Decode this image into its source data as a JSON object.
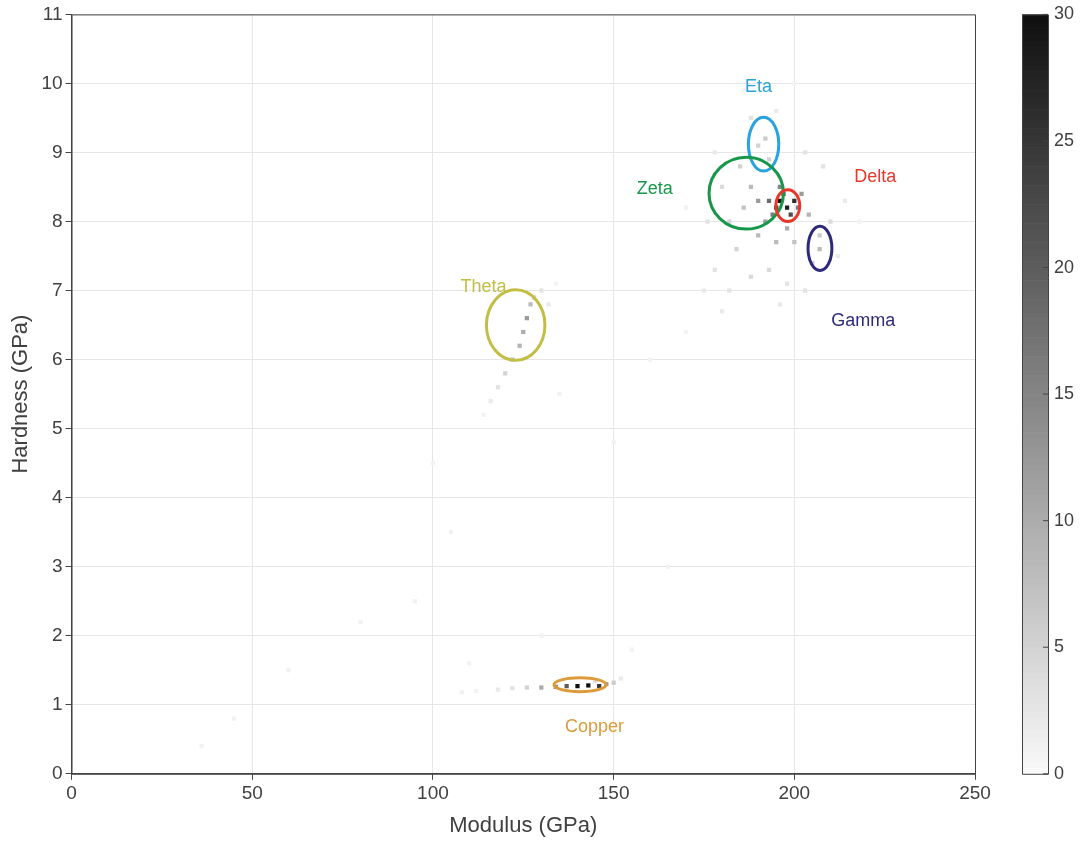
{
  "chart_data": {
    "type": "scatter",
    "xlabel": "Modulus (GPa)",
    "ylabel": "Hardness (GPa)",
    "xlim": [
      0,
      250
    ],
    "xticks": [
      0,
      50,
      100,
      150,
      200,
      250
    ],
    "ylim": [
      0,
      11
    ],
    "yticks": [
      0,
      1,
      2,
      3,
      4,
      5,
      6,
      7,
      8,
      9,
      10,
      11
    ],
    "grid": true,
    "legend": false,
    "marker": "square",
    "clim": [
      0,
      30
    ],
    "cticks": [
      0,
      5,
      10,
      15,
      20,
      25,
      30
    ],
    "series": [
      {
        "x": [
          196,
          198,
          200,
          195,
          197,
          199,
          193,
          201,
          194,
          196,
          202,
          190,
          192,
          198,
          204,
          188,
          186,
          190,
          195,
          200,
          207,
          207,
          205,
          184,
          182,
          180,
          185,
          190,
          192,
          193,
          188,
          195,
          178,
          176,
          178,
          182,
          188,
          193,
          198,
          203,
          210,
          212,
          214,
          208,
          203,
          186,
          175,
          180,
          196,
          170,
          200,
          218,
          126,
          125,
          127,
          124,
          122,
          128,
          120,
          130,
          132,
          118,
          116,
          114,
          134,
          140,
          143,
          146,
          137,
          134,
          130,
          148,
          150,
          126,
          122,
          118,
          112,
          145,
          152,
          108,
          36,
          45,
          60,
          80,
          95,
          105,
          100,
          110,
          130,
          155,
          165,
          150,
          135,
          160,
          170
        ],
        "values": [
          8.3,
          8.2,
          8.3,
          8.2,
          8.4,
          8.1,
          8.3,
          8.2,
          8.1,
          8.5,
          8.4,
          8.3,
          8.0,
          7.9,
          8.1,
          8.5,
          8.2,
          7.8,
          7.7,
          7.7,
          7.6,
          7.8,
          7.4,
          7.6,
          8.0,
          8.5,
          8.8,
          9.1,
          9.2,
          8.9,
          9.5,
          9.6,
          9.0,
          8.0,
          7.3,
          7.0,
          7.2,
          7.3,
          7.1,
          7.0,
          8.0,
          7.5,
          8.3,
          8.8,
          9.0,
          9.9,
          7.0,
          6.7,
          6.8,
          8.2,
          10.0,
          8.0,
          6.6,
          6.4,
          6.8,
          6.2,
          6.0,
          6.9,
          5.8,
          7.0,
          6.8,
          5.6,
          5.4,
          5.2,
          7.1,
          1.27,
          1.28,
          1.27,
          1.27,
          1.26,
          1.25,
          1.3,
          1.32,
          1.25,
          1.24,
          1.22,
          1.2,
          1.35,
          1.38,
          1.18,
          0.4,
          0.8,
          1.5,
          2.2,
          2.5,
          3.5,
          4.5,
          1.6,
          2.0,
          1.8,
          3.0,
          4.8,
          5.5,
          6.0,
          6.4
        ],
        "cvalues": [
          30,
          28,
          26,
          24,
          22,
          22,
          18,
          16,
          16,
          15,
          12,
          12,
          12,
          10,
          9,
          8,
          7,
          8,
          8,
          7,
          8,
          6,
          5,
          5,
          5,
          4,
          5,
          5,
          6,
          5,
          3,
          2,
          2,
          3,
          3,
          3,
          4,
          4,
          3,
          3,
          4,
          2,
          2,
          3,
          3,
          1,
          2,
          2,
          2,
          1,
          1,
          1,
          12,
          10,
          8,
          9,
          7,
          5,
          5,
          3,
          2,
          3,
          2,
          1,
          1,
          30,
          30,
          25,
          20,
          15,
          10,
          12,
          6,
          5,
          3,
          2,
          1,
          4,
          2,
          1,
          1,
          1,
          1,
          1,
          1,
          1,
          1,
          1,
          1,
          1,
          1,
          1,
          1,
          1,
          1
        ]
      }
    ],
    "annotations": [
      "Eta",
      "Zeta",
      "Delta",
      "Gamma",
      "Theta",
      "Copper"
    ]
  }
}
